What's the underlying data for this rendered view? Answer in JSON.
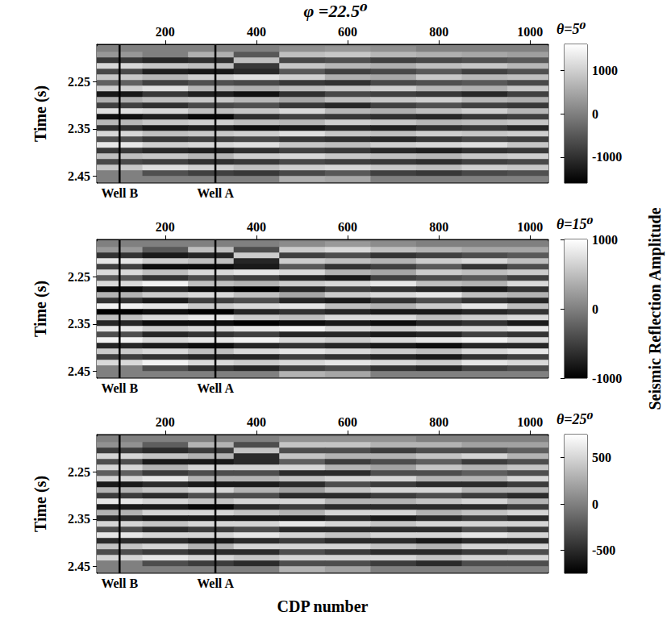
{
  "chart_data": {
    "type": "heatmap",
    "title": "φ =22.5⁰",
    "x_label": "CDP number",
    "y_label": "Time (s)",
    "colorbar_label": "Seismic Reflection Amplitude",
    "xlim": [
      50,
      1040
    ],
    "xticks": [
      200,
      400,
      600,
      800,
      1000
    ],
    "ylim": [
      2.17,
      2.465
    ],
    "yticks": [
      2.25,
      2.35,
      2.45
    ],
    "wells": [
      {
        "name": "Well B",
        "cdp": 100
      },
      {
        "name": "Well A",
        "cdp": 310
      }
    ],
    "cdp": [
      100,
      200,
      300,
      400,
      500,
      600,
      700,
      800,
      900,
      1000
    ],
    "time": [
      2.18,
      2.192,
      2.204,
      2.216,
      2.228,
      2.24,
      2.252,
      2.264,
      2.276,
      2.288,
      2.3,
      2.312,
      2.324,
      2.336,
      2.348,
      2.36,
      2.372,
      2.384,
      2.396,
      2.408,
      2.42,
      2.432,
      2.444,
      2.456
    ],
    "panels": [
      {
        "subtitle": "θ=5⁰",
        "colorbar_range": [
          -1600,
          1600
        ],
        "colorbar_ticks": [
          -1000,
          0,
          1000
        ],
        "amplitude": [
          [
            0,
            0,
            0,
            0,
            200,
            300,
            200,
            0,
            0,
            0
          ],
          [
            300,
            0,
            600,
            -500,
            800,
            900,
            700,
            600,
            500,
            400
          ],
          [
            -900,
            -1100,
            -1000,
            800,
            -700,
            -600,
            -800,
            -700,
            -600,
            -500
          ],
          [
            1100,
            900,
            800,
            -900,
            900,
            700,
            600,
            800,
            900,
            700
          ],
          [
            -700,
            -1200,
            -1300,
            -1100,
            -500,
            -800,
            -700,
            -500,
            -800,
            -600
          ],
          [
            900,
            700,
            1000,
            1200,
            1000,
            600,
            500,
            900,
            700,
            800
          ],
          [
            -400,
            -800,
            -600,
            -700,
            -900,
            -1000,
            -700,
            -600,
            -500,
            -700
          ],
          [
            1000,
            1200,
            700,
            600,
            800,
            900,
            1000,
            700,
            600,
            900
          ],
          [
            -1300,
            -900,
            -1200,
            -1400,
            -1000,
            -700,
            -800,
            -900,
            -1100,
            -800
          ],
          [
            600,
            800,
            900,
            700,
            500,
            800,
            900,
            1000,
            700,
            600
          ],
          [
            -800,
            -1000,
            -700,
            -600,
            -900,
            -1100,
            -800,
            -600,
            -800,
            -900
          ],
          [
            1200,
            1100,
            800,
            900,
            1100,
            700,
            600,
            800,
            1000,
            700
          ],
          [
            -1400,
            -1200,
            -1500,
            -1000,
            -800,
            -900,
            -1000,
            -1100,
            -900,
            -800
          ],
          [
            700,
            900,
            1000,
            800,
            700,
            1000,
            900,
            700,
            800,
            900
          ],
          [
            -1000,
            -1300,
            -1200,
            -1400,
            -1300,
            -1100,
            -1200,
            -1000,
            -900,
            -1100
          ],
          [
            1100,
            800,
            900,
            1000,
            1200,
            900,
            800,
            1000,
            900,
            1000
          ],
          [
            -600,
            -900,
            -800,
            -700,
            -900,
            -1000,
            -1100,
            -900,
            -700,
            -800
          ],
          [
            1300,
            1000,
            1100,
            1200,
            900,
            800,
            1000,
            1100,
            1200,
            900
          ],
          [
            -900,
            -1100,
            -1200,
            -1000,
            -800,
            -900,
            -1100,
            -1200,
            -1000,
            -900
          ],
          [
            800,
            900,
            700,
            1000,
            1100,
            900,
            800,
            700,
            900,
            1000
          ],
          [
            -700,
            -800,
            -1000,
            -900,
            -700,
            -800,
            -900,
            -1000,
            -800,
            -700
          ],
          [
            900,
            1200,
            1000,
            800,
            1000,
            1100,
            900,
            800,
            1000,
            900
          ],
          [
            0,
            -600,
            -800,
            -900,
            -700,
            -500,
            -800,
            -900,
            -700,
            -600
          ],
          [
            0,
            0,
            0,
            0,
            600,
            500,
            0,
            0,
            0,
            0
          ]
        ]
      },
      {
        "subtitle": "θ=15⁰",
        "colorbar_range": [
          -1000,
          1000
        ],
        "colorbar_ticks": [
          -1000,
          0,
          1000
        ],
        "amplitude": [
          [
            0,
            0,
            0,
            0,
            100,
            200,
            100,
            0,
            0,
            0
          ],
          [
            200,
            -300,
            500,
            -400,
            600,
            700,
            500,
            400,
            300,
            300
          ],
          [
            -600,
            -800,
            -700,
            600,
            -500,
            -400,
            -600,
            -500,
            -400,
            -300
          ],
          [
            800,
            600,
            500,
            -700,
            600,
            500,
            400,
            600,
            700,
            500
          ],
          [
            -500,
            -900,
            -900,
            -800,
            -300,
            -600,
            -500,
            -300,
            -600,
            -400
          ],
          [
            700,
            500,
            700,
            800,
            700,
            400,
            300,
            600,
            500,
            600
          ],
          [
            -300,
            -600,
            -400,
            -500,
            -700,
            -800,
            -500,
            -400,
            -300,
            -500
          ],
          [
            700,
            900,
            500,
            400,
            600,
            700,
            800,
            500,
            400,
            700
          ],
          [
            -900,
            -700,
            -900,
            -1000,
            -700,
            -500,
            -600,
            -700,
            -800,
            -600
          ],
          [
            400,
            600,
            700,
            500,
            300,
            600,
            700,
            800,
            500,
            400
          ],
          [
            -600,
            -800,
            -500,
            -400,
            -700,
            -800,
            -600,
            -400,
            -600,
            -700
          ],
          [
            900,
            800,
            600,
            700,
            800,
            500,
            400,
            600,
            800,
            500
          ],
          [
            -1000,
            -900,
            -1000,
            -700,
            -600,
            -700,
            -800,
            -800,
            -700,
            -600
          ],
          [
            500,
            700,
            800,
            600,
            500,
            700,
            700,
            500,
            600,
            700
          ],
          [
            -700,
            -900,
            -900,
            -1000,
            -900,
            -800,
            -900,
            -700,
            -600,
            -800
          ],
          [
            800,
            600,
            700,
            800,
            900,
            700,
            600,
            700,
            700,
            800
          ],
          [
            -400,
            -700,
            -600,
            -500,
            -700,
            -700,
            -800,
            -700,
            -500,
            -600
          ],
          [
            900,
            700,
            800,
            900,
            700,
            600,
            700,
            800,
            900,
            700
          ],
          [
            -700,
            -800,
            -900,
            -700,
            -600,
            -700,
            -800,
            -900,
            -700,
            -700
          ],
          [
            600,
            700,
            500,
            700,
            800,
            700,
            600,
            500,
            700,
            800
          ],
          [
            -500,
            -600,
            -700,
            -700,
            -500,
            -600,
            -700,
            -800,
            -600,
            -500
          ],
          [
            700,
            900,
            700,
            600,
            700,
            800,
            700,
            600,
            800,
            700
          ],
          [
            0,
            -400,
            -600,
            -700,
            -500,
            -400,
            -600,
            -700,
            -500,
            -400
          ],
          [
            0,
            0,
            0,
            0,
            400,
            300,
            0,
            0,
            0,
            0
          ]
        ]
      },
      {
        "subtitle": "θ=25⁰",
        "colorbar_range": [
          -750,
          750
        ],
        "colorbar_ticks": [
          -500,
          0,
          500
        ],
        "amplitude": [
          [
            0,
            0,
            0,
            0,
            100,
            100,
            100,
            0,
            0,
            0
          ],
          [
            100,
            -200,
            300,
            -300,
            400,
            400,
            300,
            300,
            200,
            200
          ],
          [
            -400,
            -500,
            -400,
            400,
            -300,
            -300,
            -400,
            -300,
            -300,
            -200
          ],
          [
            500,
            400,
            300,
            -500,
            400,
            300,
            300,
            400,
            500,
            300
          ],
          [
            -300,
            -600,
            -600,
            -500,
            -200,
            -400,
            -300,
            -200,
            -400,
            -300
          ],
          [
            500,
            300,
            500,
            500,
            500,
            300,
            200,
            400,
            300,
            400
          ],
          [
            -200,
            -400,
            -300,
            -300,
            -500,
            -500,
            -300,
            -300,
            -200,
            -300
          ],
          [
            500,
            600,
            300,
            300,
            400,
            500,
            500,
            300,
            300,
            500
          ],
          [
            -600,
            -500,
            -600,
            -600,
            -500,
            -300,
            -400,
            -500,
            -500,
            -400
          ],
          [
            300,
            400,
            500,
            300,
            200,
            400,
            500,
            500,
            300,
            300
          ],
          [
            -400,
            -500,
            -300,
            -300,
            -500,
            -500,
            -400,
            -300,
            -400,
            -500
          ],
          [
            600,
            500,
            400,
            500,
            500,
            300,
            300,
            400,
            500,
            300
          ],
          [
            -600,
            -600,
            -700,
            -500,
            -400,
            -500,
            -500,
            -500,
            -500,
            -400
          ],
          [
            300,
            500,
            500,
            400,
            300,
            500,
            500,
            300,
            400,
            500
          ],
          [
            -500,
            -600,
            -600,
            -600,
            -600,
            -500,
            -600,
            -500,
            -400,
            -500
          ],
          [
            500,
            400,
            500,
            500,
            600,
            500,
            400,
            500,
            500,
            500
          ],
          [
            -300,
            -500,
            -400,
            -300,
            -500,
            -500,
            -500,
            -500,
            -300,
            -400
          ],
          [
            600,
            500,
            500,
            600,
            500,
            400,
            500,
            500,
            600,
            500
          ],
          [
            -500,
            -500,
            -600,
            -500,
            -400,
            -500,
            -500,
            -600,
            -500,
            -500
          ],
          [
            400,
            500,
            300,
            500,
            500,
            500,
            400,
            300,
            500,
            500
          ],
          [
            -300,
            -400,
            -500,
            -500,
            -300,
            -400,
            -500,
            -500,
            -400,
            -300
          ],
          [
            500,
            600,
            500,
            400,
            500,
            500,
            500,
            400,
            500,
            500
          ],
          [
            0,
            -300,
            -400,
            -500,
            -300,
            -300,
            -400,
            -500,
            -300,
            -300
          ],
          [
            0,
            0,
            0,
            0,
            300,
            200,
            0,
            0,
            0,
            0
          ]
        ]
      }
    ]
  }
}
